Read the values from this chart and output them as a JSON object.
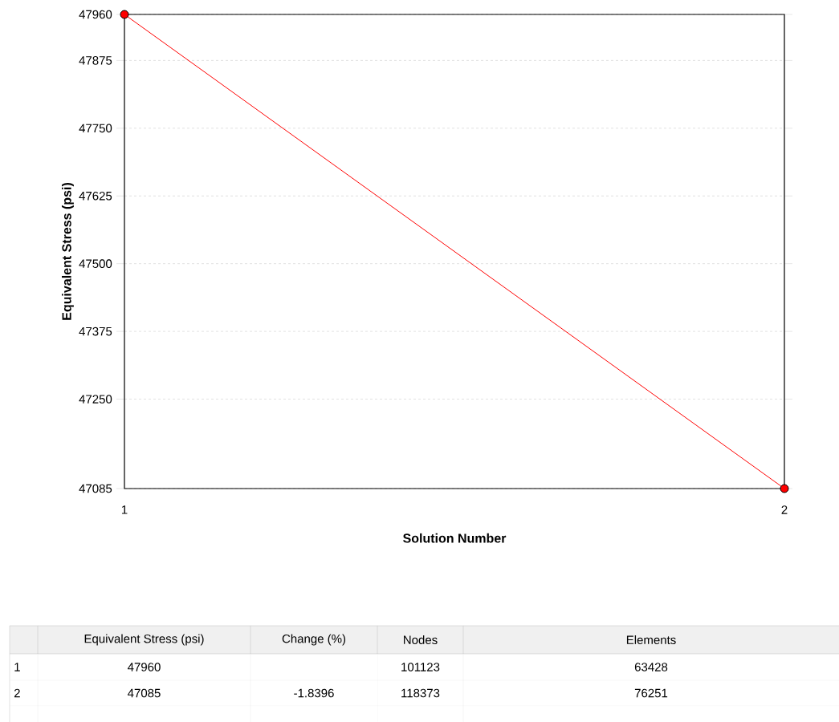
{
  "chart_data": {
    "type": "line",
    "xlabel": "Solution Number",
    "ylabel": "Equivalent Stress  (psi)",
    "x": [
      1,
      2
    ],
    "series": [
      {
        "color": "#ff0000",
        "values": [
          47960,
          47085
        ]
      }
    ],
    "xlim": [
      1,
      2
    ],
    "xticks": [
      1,
      2
    ],
    "ylim": [
      47085,
      47960
    ],
    "yticks": [
      47085,
      47250,
      47375,
      47500,
      47625,
      47750,
      47875,
      47960
    ],
    "grid": "y",
    "marker": "circle",
    "line_style": "solid",
    "annotations": [
      "Equivalent Stress (psi)",
      "Change (%)",
      "Nodes",
      "Elements",
      "1",
      "47960",
      "101123",
      "63428",
      "2",
      "47085",
      "-1.8396",
      "118373",
      "76251"
    ]
  }
}
